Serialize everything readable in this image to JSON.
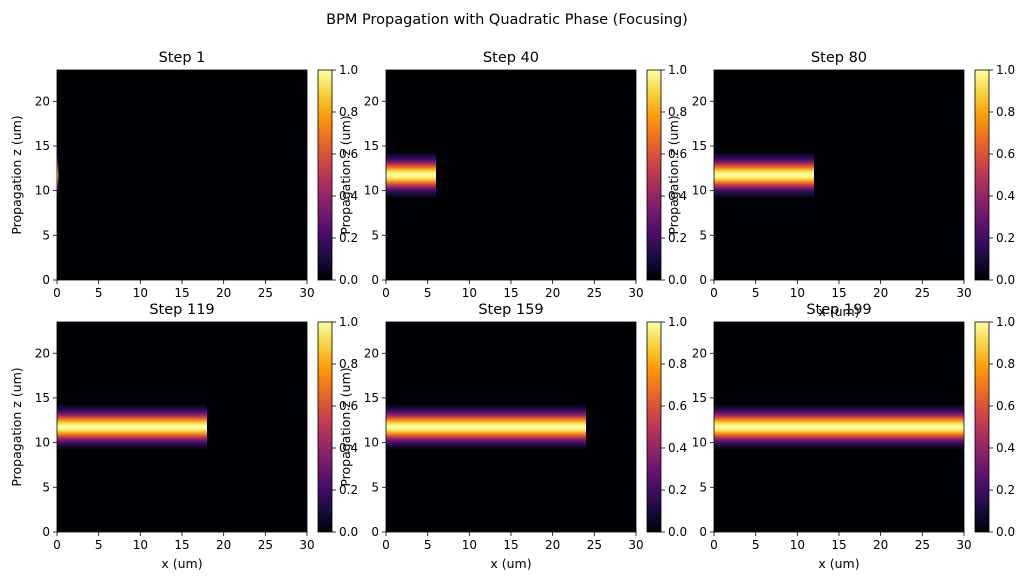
{
  "figure": {
    "title": "BPM Propagation with Quadratic Phase (Focusing)"
  },
  "colormap": {
    "name": "inferno",
    "stops": [
      "#000004",
      "#1b0c41",
      "#4a0c6b",
      "#781c6d",
      "#a52c60",
      "#cf4446",
      "#ed6925",
      "#fb9b06",
      "#f7d13d",
      "#fcffa4"
    ]
  },
  "chart_data": [
    {
      "type": "heatmap",
      "title": "Step 1",
      "xlabel": "",
      "ylabel": "Propagation z (um)",
      "xlim": [
        0,
        30
      ],
      "ylim": [
        0,
        23.5
      ],
      "xticks": [
        "0",
        "5",
        "10",
        "15",
        "20",
        "25",
        "30"
      ],
      "yticks": [
        "0",
        "5",
        "10",
        "15",
        "20"
      ],
      "beam": {
        "x_start": 0,
        "x_end": 0.15,
        "z_center": 11.75,
        "z_halfwidth": 2.5,
        "peak": 1.0
      },
      "colorbar": {
        "range": [
          0,
          1
        ],
        "ticks": [
          "0.0",
          "0.2",
          "0.4",
          "0.6",
          "0.8",
          "1.0"
        ]
      }
    },
    {
      "type": "heatmap",
      "title": "Step 40",
      "xlabel": "",
      "ylabel": "Propagation z (um)",
      "xlim": [
        0,
        30
      ],
      "ylim": [
        0,
        23.5
      ],
      "xticks": [
        "0",
        "5",
        "10",
        "15",
        "20",
        "25",
        "30"
      ],
      "yticks": [
        "0",
        "5",
        "10",
        "15",
        "20"
      ],
      "beam": {
        "x_start": 0,
        "x_end": 6.0,
        "z_center": 11.75,
        "z_halfwidth": 2.5,
        "peak": 1.0
      },
      "colorbar": {
        "range": [
          0,
          1
        ],
        "ticks": [
          "0.0",
          "0.2",
          "0.4",
          "0.6",
          "0.8",
          "1.0"
        ]
      }
    },
    {
      "type": "heatmap",
      "title": "Step 80",
      "xlabel": "x (um)",
      "ylabel": "Propagation z (um)",
      "xlim": [
        0,
        30
      ],
      "ylim": [
        0,
        23.5
      ],
      "xticks": [
        "0",
        "5",
        "10",
        "15",
        "20",
        "25",
        "30"
      ],
      "yticks": [
        "0",
        "5",
        "10",
        "15",
        "20"
      ],
      "beam": {
        "x_start": 0,
        "x_end": 12.0,
        "z_center": 11.75,
        "z_halfwidth": 2.5,
        "peak": 1.0
      },
      "colorbar": {
        "range": [
          0,
          1
        ],
        "ticks": [
          "0.0",
          "0.2",
          "0.4",
          "0.6",
          "0.8",
          "1.0"
        ]
      }
    },
    {
      "type": "heatmap",
      "title": "Step 119",
      "xlabel": "x (um)",
      "ylabel": "Propagation z (um)",
      "xlim": [
        0,
        30
      ],
      "ylim": [
        0,
        23.5
      ],
      "xticks": [
        "0",
        "5",
        "10",
        "15",
        "20",
        "25",
        "30"
      ],
      "yticks": [
        "0",
        "5",
        "10",
        "15",
        "20"
      ],
      "beam": {
        "x_start": 0,
        "x_end": 18.0,
        "z_center": 11.75,
        "z_halfwidth": 2.5,
        "peak": 1.0
      },
      "colorbar": {
        "range": [
          0,
          1
        ],
        "ticks": [
          "0.0",
          "0.2",
          "0.4",
          "0.6",
          "0.8",
          "1.0"
        ]
      }
    },
    {
      "type": "heatmap",
      "title": "Step 159",
      "xlabel": "x (um)",
      "ylabel": "Propagation z (um)",
      "xlim": [
        0,
        30
      ],
      "ylim": [
        0,
        23.5
      ],
      "xticks": [
        "0",
        "5",
        "10",
        "15",
        "20",
        "25",
        "30"
      ],
      "yticks": [
        "0",
        "5",
        "10",
        "15",
        "20"
      ],
      "beam": {
        "x_start": 0,
        "x_end": 24.0,
        "z_center": 11.75,
        "z_halfwidth": 2.5,
        "peak": 1.0
      },
      "colorbar": {
        "range": [
          0,
          1
        ],
        "ticks": [
          "0.0",
          "0.2",
          "0.4",
          "0.6",
          "0.8",
          "1.0"
        ]
      }
    },
    {
      "type": "heatmap",
      "title": "Step 199",
      "xlabel": "x (um)",
      "ylabel": "",
      "xlim": [
        0,
        30
      ],
      "ylim": [
        0,
        23.5
      ],
      "xticks": [
        "0",
        "5",
        "10",
        "15",
        "20",
        "25",
        "30"
      ],
      "yticks": [
        "0",
        "5",
        "10",
        "15",
        "20"
      ],
      "beam": {
        "x_start": 0,
        "x_end": 30.0,
        "z_center": 11.75,
        "z_halfwidth": 2.5,
        "peak": 1.0
      },
      "colorbar": {
        "range": [
          0,
          1
        ],
        "ticks": [
          "0.0",
          "0.2",
          "0.4",
          "0.6",
          "0.8",
          "1.0"
        ]
      }
    }
  ]
}
